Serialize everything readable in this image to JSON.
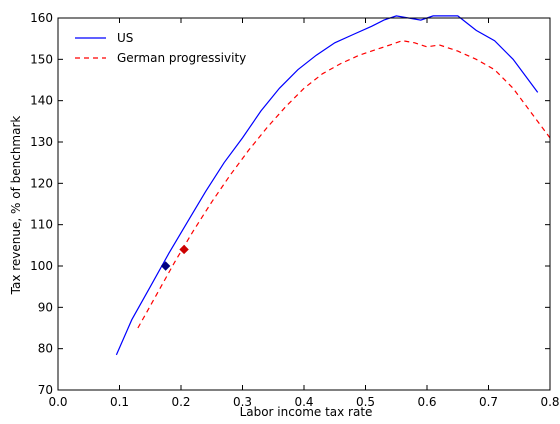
{
  "chart_data": {
    "type": "line",
    "title": "",
    "xlabel": "Labor income tax rate",
    "ylabel": "Tax revenue, % of benchmark",
    "xlim": [
      0.0,
      0.8
    ],
    "ylim": [
      70,
      160
    ],
    "xticks": [
      0.0,
      0.1,
      0.2,
      0.3,
      0.4,
      0.5,
      0.6,
      0.7,
      0.8
    ],
    "xtick_labels": [
      "0.0",
      "0.1",
      "0.2",
      "0.3",
      "0.4",
      "0.5",
      "0.6",
      "0.7",
      "0.8"
    ],
    "yticks": [
      70,
      80,
      90,
      100,
      110,
      120,
      130,
      140,
      150,
      160
    ],
    "ytick_labels": [
      "70",
      "80",
      "90",
      "100",
      "110",
      "120",
      "130",
      "140",
      "150",
      "160"
    ],
    "grid": false,
    "legend_position": "top-left",
    "series": [
      {
        "name": "US",
        "color": "#0000ff",
        "linestyle": "solid",
        "x": [
          0.095,
          0.12,
          0.15,
          0.18,
          0.21,
          0.24,
          0.27,
          0.3,
          0.33,
          0.36,
          0.39,
          0.42,
          0.45,
          0.48,
          0.51,
          0.53,
          0.55,
          0.57,
          0.59,
          0.61,
          0.63,
          0.65,
          0.68,
          0.71,
          0.74,
          0.78
        ],
        "y": [
          78.5,
          87,
          95,
          103,
          110.5,
          118,
          125,
          131,
          137.5,
          143,
          147.5,
          151,
          154,
          156,
          158,
          159.5,
          160.5,
          160,
          159.5,
          160.5,
          160.5,
          160.5,
          157,
          154.5,
          150,
          142
        ],
        "marker": {
          "x": 0.175,
          "y": 100,
          "color": "#000080"
        }
      },
      {
        "name": "German progressivity",
        "color": "#ff0000",
        "linestyle": "dashed",
        "x": [
          0.13,
          0.16,
          0.19,
          0.22,
          0.25,
          0.28,
          0.31,
          0.34,
          0.37,
          0.4,
          0.43,
          0.46,
          0.49,
          0.52,
          0.54,
          0.56,
          0.58,
          0.6,
          0.62,
          0.65,
          0.68,
          0.71,
          0.74,
          0.77,
          0.8
        ],
        "y": [
          85,
          93,
          101,
          108.5,
          115.5,
          122,
          128,
          133.5,
          138.5,
          143,
          146.5,
          149,
          151,
          152.5,
          153.5,
          154.5,
          154,
          153,
          153.5,
          152,
          150,
          147.5,
          143,
          137,
          131
        ],
        "marker": {
          "x": 0.205,
          "y": 104,
          "color": "#cc0000"
        }
      }
    ]
  }
}
